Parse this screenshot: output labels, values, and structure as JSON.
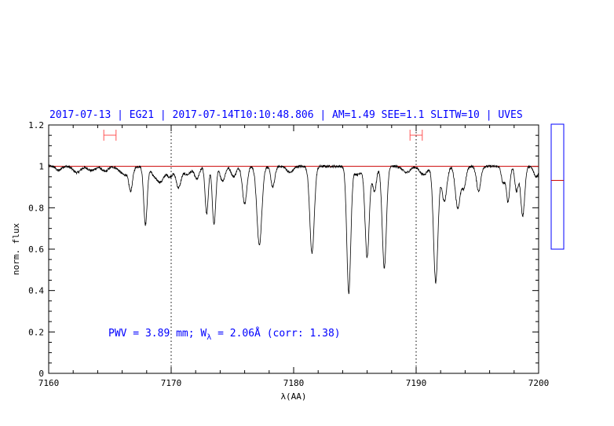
{
  "chart_data": {
    "type": "line",
    "title": "2017-07-13 | EG21 | 2017-07-14T10:10:48.806 | AM=1.49 SEE=1.1 SLITW=10 | UVES",
    "xlabel": "λ(AA)",
    "ylabel": "norm. flux",
    "xlim": [
      7160,
      7200
    ],
    "ylim": [
      0,
      1.2
    ],
    "x_ticks": [
      7160,
      7170,
      7180,
      7190,
      7200
    ],
    "x_tick_labels": [
      "7160",
      "7170",
      "7180",
      "7190",
      "7200"
    ],
    "y_ticks": [
      0,
      0.2,
      0.4,
      0.6,
      0.8,
      1,
      1.2
    ],
    "y_tick_labels": [
      "0",
      "0.2",
      "0.4",
      "0.6",
      "0.8",
      "1",
      "1.2"
    ],
    "vertical_lines": [
      7170,
      7190
    ],
    "continuum_level": 1.0,
    "continuum_windows": [
      [
        7164.5,
        7165.5
      ],
      [
        7189.5,
        7190.5
      ]
    ],
    "annotation": {
      "prefix": "PWV = 3.89 mm; W",
      "subscript": "λ",
      "suffix": " = 2.06Å (corr: 1.38)"
    },
    "side_bar": {
      "range": [
        0,
        1.2
      ],
      "marker": 0.66
    },
    "colors": {
      "title": "#0000ff",
      "continuum": "#cc0000",
      "window": "#ff5555",
      "spectrum": "#000000",
      "annotation": "#0000ff",
      "side_bar": "#0000ff"
    },
    "series": [
      {
        "type": "spectrum",
        "continuum": 1.0,
        "noise": 0.006,
        "lines": [
          {
            "center": 7160.8,
            "depth": 0.02,
            "width": 0.2
          },
          {
            "center": 7162.3,
            "depth": 0.03,
            "width": 0.3
          },
          {
            "center": 7163.5,
            "depth": 0.02,
            "width": 0.3
          },
          {
            "center": 7164.6,
            "depth": 0.025,
            "width": 0.25
          },
          {
            "center": 7166.2,
            "depth": 0.04,
            "width": 0.4
          },
          {
            "center": 7166.7,
            "depth": 0.1,
            "width": 0.15
          },
          {
            "center": 7167.9,
            "depth": 0.28,
            "width": 0.14
          },
          {
            "center": 7168.7,
            "depth": 0.05,
            "width": 0.3
          },
          {
            "center": 7169.2,
            "depth": 0.06,
            "width": 0.25
          },
          {
            "center": 7169.9,
            "depth": 0.05,
            "width": 0.25
          },
          {
            "center": 7170.6,
            "depth": 0.1,
            "width": 0.2
          },
          {
            "center": 7171.3,
            "depth": 0.04,
            "width": 0.3
          },
          {
            "center": 7172.1,
            "depth": 0.06,
            "width": 0.2
          },
          {
            "center": 7172.9,
            "depth": 0.23,
            "width": 0.13
          },
          {
            "center": 7173.5,
            "depth": 0.28,
            "width": 0.14
          },
          {
            "center": 7174.2,
            "depth": 0.07,
            "width": 0.2
          },
          {
            "center": 7175.1,
            "depth": 0.05,
            "width": 0.2
          },
          {
            "center": 7176.0,
            "depth": 0.18,
            "width": 0.18
          },
          {
            "center": 7177.2,
            "depth": 0.38,
            "width": 0.2
          },
          {
            "center": 7178.3,
            "depth": 0.1,
            "width": 0.16
          },
          {
            "center": 7179.7,
            "depth": 0.03,
            "width": 0.25
          },
          {
            "center": 7181.5,
            "depth": 0.42,
            "width": 0.18
          },
          {
            "center": 7184.5,
            "depth": 0.61,
            "width": 0.16
          },
          {
            "center": 7185.2,
            "depth": 0.04,
            "width": 0.3
          },
          {
            "center": 7186.0,
            "depth": 0.44,
            "width": 0.17
          },
          {
            "center": 7186.6,
            "depth": 0.12,
            "width": 0.16
          },
          {
            "center": 7187.4,
            "depth": 0.49,
            "width": 0.17
          },
          {
            "center": 7189.2,
            "depth": 0.03,
            "width": 0.3
          },
          {
            "center": 7190.6,
            "depth": 0.04,
            "width": 0.3
          },
          {
            "center": 7191.6,
            "depth": 0.56,
            "width": 0.18
          },
          {
            "center": 7192.3,
            "depth": 0.17,
            "width": 0.2
          },
          {
            "center": 7193.4,
            "depth": 0.2,
            "width": 0.2
          },
          {
            "center": 7193.9,
            "depth": 0.1,
            "width": 0.17
          },
          {
            "center": 7195.1,
            "depth": 0.12,
            "width": 0.17
          },
          {
            "center": 7197.1,
            "depth": 0.08,
            "width": 0.14
          },
          {
            "center": 7197.5,
            "depth": 0.17,
            "width": 0.14
          },
          {
            "center": 7198.2,
            "depth": 0.12,
            "width": 0.14
          },
          {
            "center": 7198.7,
            "depth": 0.24,
            "width": 0.16
          },
          {
            "center": 7199.8,
            "depth": 0.05,
            "width": 0.2
          }
        ]
      }
    ]
  }
}
